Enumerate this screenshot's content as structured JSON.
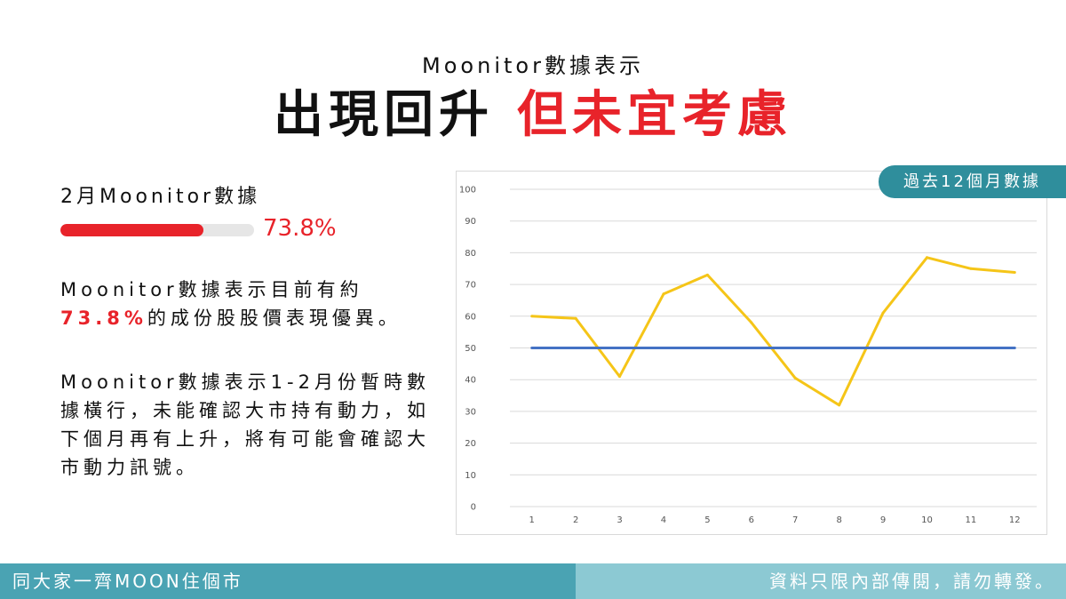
{
  "header": {
    "subtitle": "Moonitor數據表示",
    "headline_black": "出現回升",
    "headline_red": "但未宜考慮"
  },
  "metric": {
    "label": "2月Moonitor數據",
    "value_text": "73.8%",
    "progress_fraction": 0.738
  },
  "paragraphs": {
    "p1_line1": "Moonitor數據表示目前有約",
    "p1_highlight": "73.8%",
    "p1_rest": "的成份股股價表現優異。",
    "p2": "Moonitor數據表示1-2月份暫時數據橫行，未能確認大市持有動力，如下個月再有上升，將有可能會確認大市動力訊號。"
  },
  "chart_badge": "過去12個月數據",
  "chart_data": {
    "type": "line",
    "x": [
      1,
      2,
      3,
      4,
      5,
      6,
      7,
      8,
      9,
      10,
      11,
      12
    ],
    "series": [
      {
        "values": [
          60,
          59.3,
          41,
          67,
          73,
          58,
          40.5,
          32,
          61,
          78.5,
          75,
          73.8
        ],
        "color": "#f5c518"
      },
      {
        "values": [
          50,
          50,
          50,
          50,
          50,
          50,
          50,
          50,
          50,
          50,
          50,
          50
        ],
        "color": "#4472c4"
      }
    ],
    "ylim": [
      0,
      100
    ],
    "yticks": [
      0,
      10,
      20,
      30,
      40,
      50,
      60,
      70,
      80,
      90,
      100
    ],
    "grid": true,
    "title": "",
    "xlabel": "",
    "ylabel": ""
  },
  "footer": {
    "left": "同大家一齊MOON住個市",
    "right": "資料只限內部傳閱，請勿轉發。"
  },
  "colors": {
    "accent_red": "#e8232a",
    "teal": "#4aa3b3",
    "light_teal": "#8cc9d3"
  }
}
